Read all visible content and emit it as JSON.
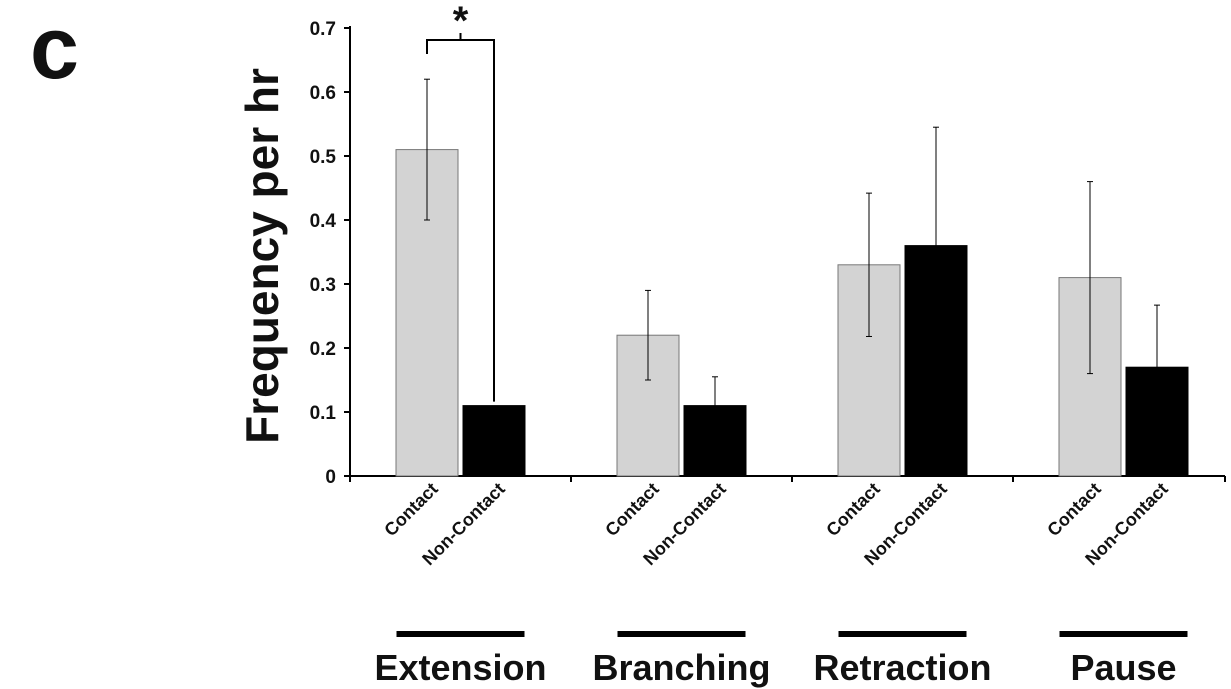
{
  "panel_label": "c",
  "chart_data": {
    "type": "bar",
    "ylabel": "Frequency per hr",
    "ylim": [
      0,
      0.7
    ],
    "yticks": [
      0,
      0.1,
      0.2,
      0.3,
      0.4,
      0.5,
      0.6,
      0.7
    ],
    "ytick_labels": [
      "0",
      "0.1",
      "0.2",
      "0.3",
      "0.4",
      "0.5",
      "0.6",
      "0.7"
    ],
    "groups": [
      "Extension",
      "Branching",
      "Retraction",
      "Pause"
    ],
    "series": [
      {
        "name": "Contact",
        "color": "#d3d3d3",
        "values": [
          0.51,
          0.22,
          0.33,
          0.31
        ],
        "error": [
          0.11,
          0.07,
          0.112,
          0.15
        ]
      },
      {
        "name": "Non-Contact",
        "color": "#000000",
        "values": [
          0.11,
          0.11,
          0.36,
          0.17
        ],
        "error": [
          0.0,
          0.045,
          0.185,
          0.097
        ]
      }
    ],
    "annotations": [
      {
        "type": "significance",
        "text": "*",
        "group": "Extension",
        "between": [
          "Contact",
          "Non-Contact"
        ]
      }
    ],
    "grid": false,
    "legend": "none"
  }
}
